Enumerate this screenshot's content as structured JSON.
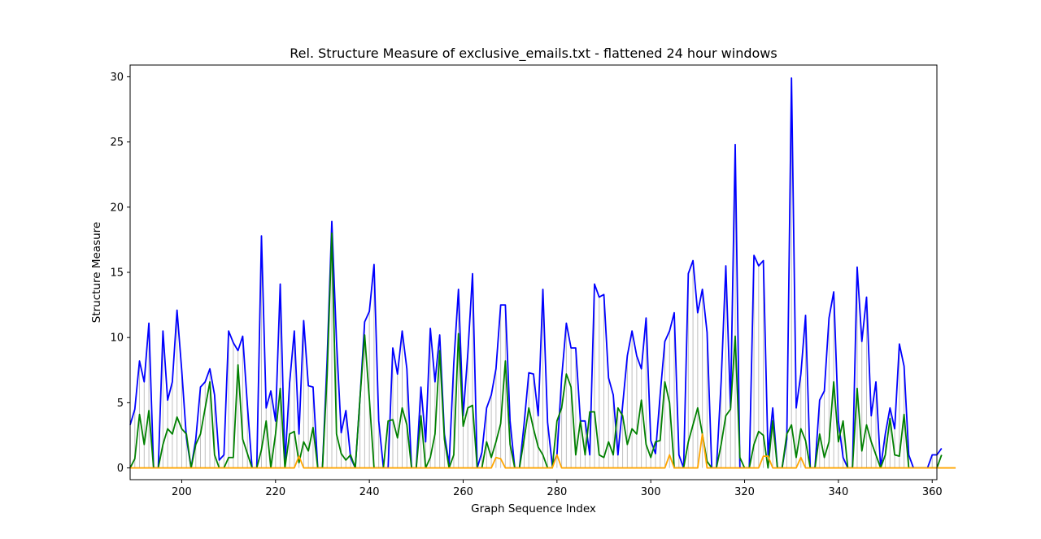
{
  "chart_data": {
    "type": "line",
    "title": "Rel. Structure Measure of exclusive_emails.txt - flattened 24 hour windows",
    "xlabel": "Graph Sequence Index",
    "ylabel": "Structure Measure",
    "xlim": [
      189,
      361
    ],
    "ylim": [
      -0.9,
      30.9
    ],
    "xticks": [
      200,
      220,
      240,
      260,
      280,
      300,
      320,
      340,
      360
    ],
    "yticks": [
      0,
      5,
      10,
      15,
      20,
      25,
      30
    ],
    "grid": false,
    "x_start": 189,
    "series": [
      {
        "color": "#0000ff",
        "values": [
          3.3,
          4.5,
          8.2,
          6.6,
          11.1,
          0,
          0,
          10.5,
          5.2,
          6.6,
          12.1,
          7.5,
          2.3,
          0,
          2.2,
          6.2,
          6.6,
          7.6,
          5.6,
          0.6,
          1.0,
          10.5,
          9.6,
          9.0,
          10.1,
          4.8,
          0,
          0,
          17.8,
          4.6,
          5.9,
          3.6,
          14.1,
          0.3,
          6.5,
          10.5,
          2.6,
          11.3,
          6.3,
          6.2,
          0,
          0,
          8.3,
          18.9,
          9.7,
          2.7,
          4.4,
          0.8,
          0,
          5.3,
          11.2,
          12.0,
          15.6,
          3.6,
          0,
          0,
          9.2,
          7.2,
          10.5,
          7.6,
          0,
          0,
          6.2,
          2.0,
          10.7,
          6.6,
          10.2,
          2.6,
          0.3,
          8.0,
          13.7,
          4.0,
          8.8,
          14.9,
          0,
          1.2,
          4.6,
          5.6,
          7.6,
          12.5,
          12.5,
          3.6,
          0,
          0,
          3.4,
          7.3,
          7.2,
          4.0,
          13.7,
          3.5,
          0.2,
          1.0,
          6.9,
          11.1,
          9.2,
          9.2,
          3.6,
          3.6,
          1.0,
          14.1,
          13.1,
          13.3,
          6.9,
          5.6,
          1.0,
          4.8,
          8.6,
          10.5,
          8.6,
          7.6,
          11.5,
          2.1,
          1.1,
          5.6,
          9.7,
          10.5,
          11.9,
          1.0,
          0,
          14.9,
          15.9,
          11.9,
          13.7,
          10.4,
          0,
          0,
          6.6,
          15.5,
          4.6,
          24.8,
          0,
          0,
          0,
          16.3,
          15.5,
          15.9,
          1.0,
          4.6,
          0,
          0,
          2.2,
          29.9,
          4.6,
          7.2,
          11.7,
          0,
          0,
          5.2,
          5.9,
          11.5,
          13.5,
          3.6,
          0.8,
          0,
          0,
          15.4,
          9.7,
          13.1,
          4.0,
          6.6,
          0,
          2.6,
          4.6,
          3.0,
          9.5,
          7.8,
          1.0,
          0,
          0,
          0,
          0,
          1.0,
          1.0,
          1.5
        ]
      },
      {
        "color": "#008000",
        "values": [
          0,
          0.7,
          4.1,
          1.8,
          4.4,
          0,
          0,
          1.8,
          3.0,
          2.6,
          3.9,
          3.0,
          2.6,
          0,
          1.8,
          2.6,
          4.6,
          6.6,
          1.0,
          0,
          0,
          0.8,
          0.8,
          7.9,
          2.2,
          1.1,
          0,
          0,
          1.4,
          3.6,
          0,
          2.6,
          6.1,
          0,
          2.6,
          2.8,
          0.4,
          2.0,
          1.3,
          3.1,
          0,
          0,
          7.1,
          18.0,
          2.6,
          1.1,
          0.6,
          1.0,
          0,
          5.3,
          10.2,
          5.3,
          0,
          0,
          0,
          3.6,
          3.7,
          2.3,
          4.6,
          3.3,
          0,
          0,
          4.0,
          0,
          0.8,
          2.6,
          9.0,
          2.2,
          0,
          1.0,
          10.3,
          3.2,
          4.6,
          4.8,
          0,
          0,
          2.0,
          0.8,
          2.0,
          3.4,
          8.2,
          1.8,
          0,
          0,
          2.2,
          4.6,
          3.0,
          1.6,
          1.0,
          0,
          0,
          3.6,
          4.6,
          7.2,
          6.2,
          1.0,
          3.6,
          1.0,
          4.3,
          4.3,
          1.0,
          0.8,
          2.0,
          1.0,
          4.6,
          4.0,
          1.8,
          3.0,
          2.6,
          5.2,
          1.8,
          0.8,
          2.0,
          2.1,
          6.6,
          5.0,
          0,
          0,
          0,
          2.0,
          3.3,
          4.6,
          2.6,
          0.5,
          0,
          0,
          1.8,
          4.0,
          4.5,
          10.1,
          0.8,
          0,
          0,
          1.8,
          2.8,
          2.5,
          0,
          3.6,
          0,
          0,
          2.6,
          3.3,
          0.8,
          3.0,
          2.1,
          0,
          0,
          2.6,
          0.8,
          2.0,
          6.6,
          2.0,
          3.6,
          0,
          0,
          6.1,
          1.3,
          3.3,
          2.0,
          1.0,
          0,
          1.0,
          3.8,
          1.0,
          0.9,
          4.1,
          0,
          0,
          0,
          0,
          0,
          0,
          0,
          1.0
        ]
      },
      {
        "color": "#ffa500",
        "values": [
          0,
          0,
          0,
          0,
          0,
          0,
          0,
          0,
          0,
          0,
          0,
          0,
          0,
          0,
          0,
          0,
          0,
          0,
          0,
          0,
          0,
          0,
          0,
          0,
          0,
          0,
          0,
          0,
          0,
          0,
          0,
          0,
          0,
          0,
          0,
          0,
          0.9,
          0,
          0,
          0,
          0,
          0,
          0,
          0,
          0,
          0,
          0,
          0,
          0,
          0,
          0,
          0,
          0,
          0,
          0,
          0,
          0,
          0,
          0,
          0,
          0,
          0,
          0,
          0,
          0,
          0,
          0,
          0,
          0,
          0,
          0,
          0,
          0,
          0,
          0,
          0,
          0,
          0,
          0.8,
          0.7,
          0,
          0,
          0,
          0,
          0,
          0,
          0,
          0,
          0,
          0,
          0,
          1.0,
          0,
          0,
          0,
          0,
          0,
          0,
          0,
          0,
          0,
          0,
          0,
          0,
          0,
          0,
          0,
          0,
          0,
          0,
          0,
          0,
          0,
          0,
          0,
          1.0,
          0,
          0,
          0,
          0,
          0,
          0,
          2.6,
          0,
          0,
          0,
          0,
          0,
          0,
          0,
          0,
          0,
          0,
          0,
          0,
          0.9,
          0.9,
          0,
          0,
          0,
          0,
          0,
          0,
          0.8,
          0,
          0,
          0,
          0,
          0,
          0,
          0,
          0,
          0,
          0,
          0,
          0,
          0,
          0,
          0,
          0,
          0,
          0,
          0,
          0,
          0,
          0,
          0,
          0,
          0,
          0,
          0,
          0,
          0,
          0,
          0,
          0,
          0
        ]
      }
    ],
    "stem_color": "#c0c0c0"
  }
}
